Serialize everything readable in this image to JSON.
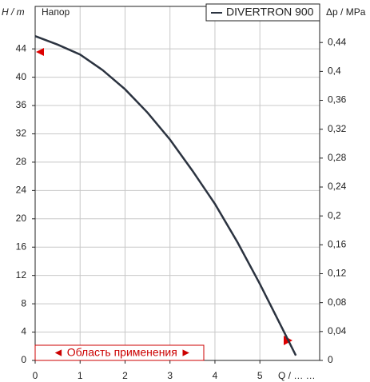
{
  "chart_data": {
    "type": "line",
    "title": "Напор",
    "y_label": "H / m",
    "y2_label": "Δp / MPa",
    "x_label": "Q / … …",
    "annotation": "◄ Область применения ►",
    "x": [
      0,
      0.5,
      1,
      1.5,
      2,
      2.5,
      3,
      3.5,
      4,
      4.5,
      5,
      5.5,
      5.8
    ],
    "series": [
      {
        "name": "DIVERTRON 900",
        "color": "#2b3340",
        "values": [
          45.8,
          44.6,
          43.2,
          41,
          38.3,
          35,
          31.2,
          26.8,
          22.1,
          16.7,
          10.8,
          4.5,
          0.7
        ]
      }
    ],
    "xlim": [
      0,
      6.33
    ],
    "xticks": [
      0,
      1,
      2,
      3,
      4,
      5
    ],
    "ylim": [
      0,
      50
    ],
    "yticks": [
      0,
      4,
      8,
      12,
      16,
      20,
      24,
      28,
      32,
      36,
      40,
      44
    ],
    "y2lim": [
      0,
      0.49
    ],
    "y2ticks": [
      0,
      {
        "value": 0.04,
        "label": "0,04"
      },
      {
        "value": 0.08,
        "label": "0,08"
      },
      {
        "value": 0.12,
        "label": "0,12"
      },
      {
        "value": 0.16,
        "label": "0,16"
      },
      {
        "value": 0.2,
        "label": "0,2"
      },
      {
        "value": 0.24,
        "label": "0,24"
      },
      {
        "value": 0.28,
        "label": "0,28"
      },
      {
        "value": 0.32,
        "label": "0,32"
      },
      {
        "value": 0.36,
        "label": "0,36"
      },
      {
        "value": 0.4,
        "label": "0,4"
      },
      {
        "value": 0.44,
        "label": "0,44"
      }
    ],
    "grid": true
  }
}
